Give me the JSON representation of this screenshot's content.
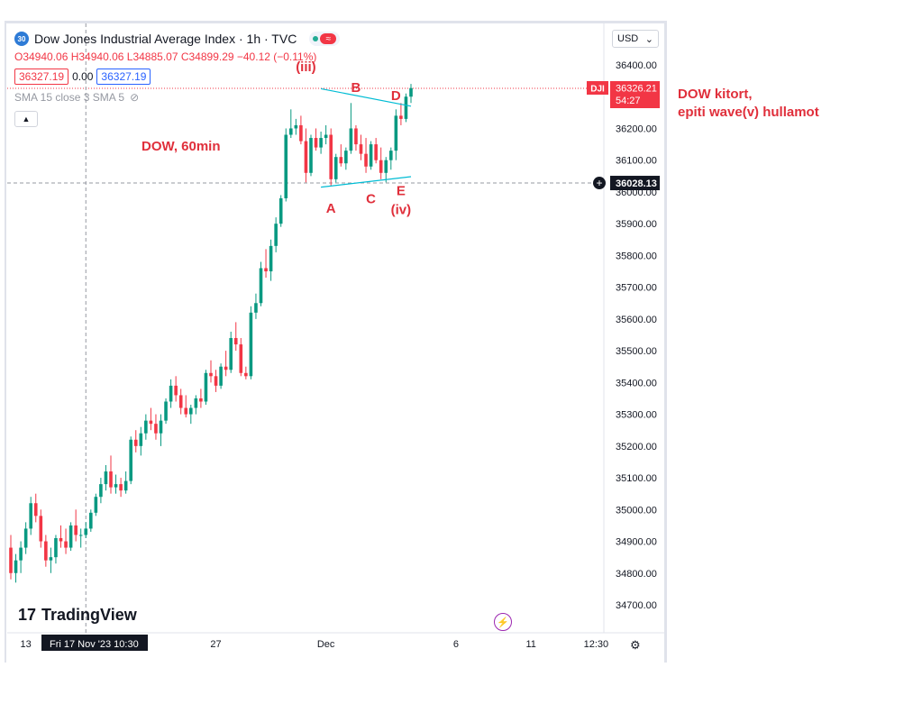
{
  "header": {
    "badge": "30",
    "title": "Dow Jones Industrial Average Index · 1h · TVC",
    "ohlc": "O34940.06 H34940.06 L34885.07 C34899.29 −40.12 (−0.11%)",
    "price_left": "36327.19",
    "spread": "0.00",
    "price_right": "36327.19",
    "indicator": "SMA 15 close 3 SMA 5",
    "currency": "USD"
  },
  "brand": {
    "logo_mark": "17",
    "logo_text": "TradingView"
  },
  "annotations": {
    "chart_label": "DOW, 60min",
    "note_line1": "DOW kitort,",
    "note_line2": "epiti wave(v) hullamot"
  },
  "colors": {
    "up": "#089981",
    "down": "#f23645",
    "annotation": "#e02f3b",
    "trendline": "#00bcd4"
  },
  "chart_data": {
    "type": "candlestick",
    "title": "Dow Jones Industrial Average Index · 1h · TVC",
    "ylim": [
      34640,
      36440
    ],
    "y_ticks": [
      "36400.00",
      "36300.00",
      "36200.00",
      "36100.00",
      "36000.00",
      "35900.00",
      "35800.00",
      "35700.00",
      "35600.00",
      "35500.00",
      "35400.00",
      "35300.00",
      "35200.00",
      "35100.00",
      "35000.00",
      "34900.00",
      "34800.00",
      "34700.00"
    ],
    "x_ticks": [
      {
        "label": "13",
        "i": 3
      },
      {
        "label": "27",
        "i": 41
      },
      {
        "label": "Dec",
        "i": 63
      },
      {
        "label": "6",
        "i": 89
      },
      {
        "label": "11",
        "i": 104
      },
      {
        "label": "12:30",
        "i": 117
      }
    ],
    "crosshair": {
      "x_label": "Fri 17 Nov '23   10:30",
      "y_label": "36028.13",
      "i": 15,
      "y": 36028.13
    },
    "last_price": {
      "symbol": "DJI",
      "value": "36326.21",
      "countdown": "54:27",
      "y": 36326.21
    },
    "candles": [
      [
        34880,
        34920,
        34780,
        34800
      ],
      [
        34800,
        34860,
        34770,
        34840
      ],
      [
        34840,
        34900,
        34800,
        34880
      ],
      [
        34880,
        34960,
        34860,
        34940
      ],
      [
        34940,
        35040,
        34920,
        35020
      ],
      [
        35020,
        35050,
        34960,
        34980
      ],
      [
        34980,
        35000,
        34880,
        34900
      ],
      [
        34900,
        34920,
        34820,
        34840
      ],
      [
        34840,
        34880,
        34800,
        34850
      ],
      [
        34850,
        34920,
        34830,
        34910
      ],
      [
        34910,
        34950,
        34880,
        34900
      ],
      [
        34900,
        34940,
        34860,
        34880
      ],
      [
        34880,
        34960,
        34870,
        34950
      ],
      [
        34950,
        35000,
        34900,
        34920
      ],
      [
        34920,
        34940,
        34880,
        34920
      ],
      [
        34920,
        34960,
        34910,
        34940
      ],
      [
        34940,
        35000,
        34930,
        34990
      ],
      [
        34990,
        35050,
        34980,
        35040
      ],
      [
        35040,
        35100,
        35020,
        35080
      ],
      [
        35080,
        35140,
        35060,
        35120
      ],
      [
        35120,
        35170,
        35050,
        35070
      ],
      [
        35070,
        35110,
        35050,
        35080
      ],
      [
        35080,
        35100,
        35040,
        35060
      ],
      [
        35060,
        35120,
        35050,
        35090
      ],
      [
        35090,
        35230,
        35080,
        35220
      ],
      [
        35220,
        35250,
        35180,
        35200
      ],
      [
        35200,
        35260,
        35170,
        35240
      ],
      [
        35240,
        35300,
        35220,
        35280
      ],
      [
        35280,
        35320,
        35250,
        35270
      ],
      [
        35270,
        35300,
        35220,
        35240
      ],
      [
        35240,
        35300,
        35200,
        35280
      ],
      [
        35280,
        35350,
        35270,
        35340
      ],
      [
        35340,
        35410,
        35320,
        35390
      ],
      [
        35390,
        35420,
        35340,
        35360
      ],
      [
        35360,
        35380,
        35300,
        35320
      ],
      [
        35320,
        35360,
        35290,
        35300
      ],
      [
        35300,
        35330,
        35270,
        35320
      ],
      [
        35320,
        35360,
        35300,
        35350
      ],
      [
        35350,
        35380,
        35320,
        35340
      ],
      [
        35340,
        35440,
        35330,
        35430
      ],
      [
        35430,
        35470,
        35400,
        35420
      ],
      [
        35420,
        35440,
        35370,
        35390
      ],
      [
        35390,
        35460,
        35380,
        35450
      ],
      [
        35450,
        35500,
        35420,
        35440
      ],
      [
        35440,
        35560,
        35430,
        35540
      ],
      [
        35540,
        35590,
        35500,
        35520
      ],
      [
        35520,
        35540,
        35420,
        35430
      ],
      [
        35430,
        35450,
        35410,
        35420
      ],
      [
        35420,
        35640,
        35410,
        35620
      ],
      [
        35620,
        35680,
        35600,
        35650
      ],
      [
        35650,
        35780,
        35640,
        35760
      ],
      [
        35760,
        35820,
        35730,
        35750
      ],
      [
        35750,
        35850,
        35720,
        35830
      ],
      [
        35830,
        35920,
        35810,
        35900
      ],
      [
        35900,
        35990,
        35890,
        35980
      ],
      [
        35980,
        36200,
        35970,
        36180
      ],
      [
        36180,
        36260,
        36170,
        36200
      ],
      [
        36200,
        36230,
        36180,
        36210
      ],
      [
        36210,
        36240,
        36150,
        36160
      ],
      [
        36160,
        36200,
        36030,
        36060
      ],
      [
        36060,
        36180,
        36050,
        36170
      ],
      [
        36170,
        36200,
        36130,
        36140
      ],
      [
        36140,
        36190,
        36120,
        36170
      ],
      [
        36170,
        36210,
        36150,
        36180
      ],
      [
        36180,
        36200,
        36020,
        36040
      ],
      [
        36040,
        36120,
        36030,
        36110
      ],
      [
        36110,
        36150,
        36080,
        36090
      ],
      [
        36090,
        36140,
        36070,
        36130
      ],
      [
        36130,
        36280,
        36120,
        36200
      ],
      [
        36200,
        36210,
        36130,
        36150
      ],
      [
        36150,
        36180,
        36100,
        36120
      ],
      [
        36120,
        36170,
        36060,
        36080
      ],
      [
        36080,
        36160,
        36070,
        36150
      ],
      [
        36150,
        36170,
        36090,
        36100
      ],
      [
        36100,
        36140,
        36040,
        36060
      ],
      [
        36060,
        36110,
        36030,
        36100
      ],
      [
        36100,
        36140,
        36070,
        36130
      ],
      [
        36130,
        36260,
        36100,
        36240
      ],
      [
        36240,
        36280,
        36210,
        36230
      ],
      [
        36230,
        36310,
        36220,
        36300
      ],
      [
        36300,
        36340,
        36280,
        36327
      ]
    ],
    "wave_labels": [
      {
        "text": "(iii)",
        "i": 59,
        "y": 36380
      },
      {
        "text": "B",
        "i": 69,
        "y": 36315
      },
      {
        "text": "D",
        "i": 77,
        "y": 36290
      },
      {
        "text": "A",
        "i": 64,
        "y": 35935
      },
      {
        "text": "C",
        "i": 72,
        "y": 35965
      },
      {
        "text": "E",
        "i": 78,
        "y": 35990
      },
      {
        "text": "(iv)",
        "i": 78,
        "y": 35930
      }
    ],
    "trendlines": [
      {
        "i1": 62,
        "y1": 36325,
        "i2": 80,
        "y2": 36270
      },
      {
        "i1": 62,
        "y1": 36015,
        "i2": 80,
        "y2": 36048
      }
    ]
  }
}
